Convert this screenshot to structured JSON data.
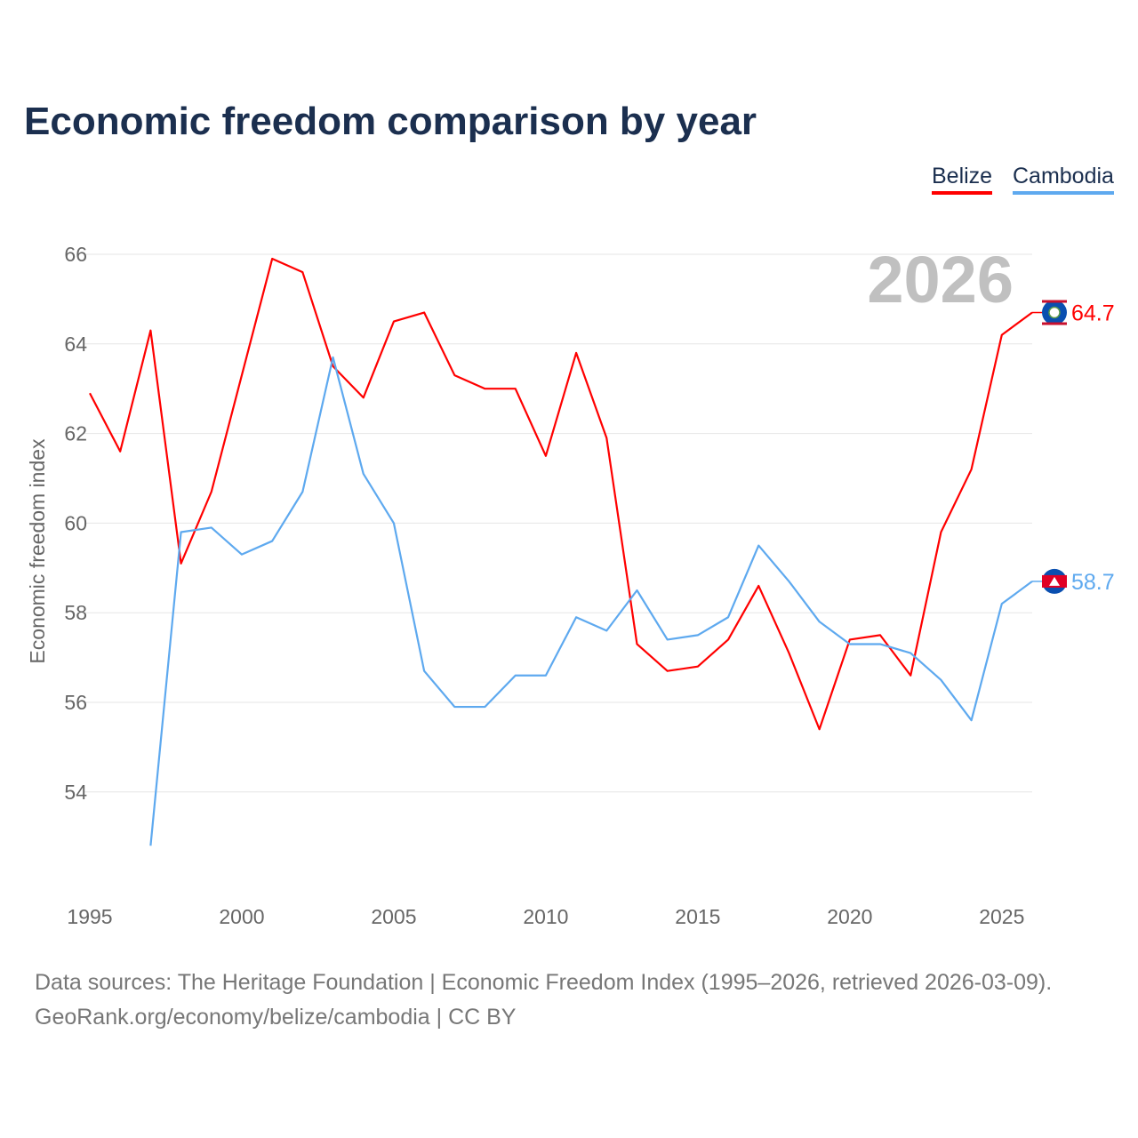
{
  "title": "Economic freedom comparison by year",
  "legend": [
    "Belize",
    "Cambodia"
  ],
  "footer": {
    "line1": "Data sources: The Heritage Foundation | Economic Freedom Index (1995–2026, retrieved 2026-03-09).",
    "line2": "GeoRank.org/economy/belize/cambodia | CC BY"
  },
  "year_watermark": "2026",
  "chart_data": {
    "type": "line",
    "title": "Economic freedom comparison by year",
    "xlabel": "",
    "ylabel": "Economic freedom index",
    "xlim": [
      1995,
      2026
    ],
    "ylim": [
      52.6,
      66
    ],
    "xticks": [
      1995,
      2000,
      2005,
      2010,
      2015,
      2020,
      2025
    ],
    "yticks": [
      54,
      56,
      58,
      60,
      62,
      64,
      66
    ],
    "grid": true,
    "legend_placement": "top-right",
    "series": [
      {
        "name": "Belize",
        "color": "#ff0000",
        "end_label": "64.7",
        "x": [
          1995,
          1996,
          1997,
          1998,
          1999,
          2000,
          2001,
          2002,
          2003,
          2004,
          2005,
          2006,
          2007,
          2008,
          2009,
          2010,
          2011,
          2012,
          2013,
          2014,
          2015,
          2016,
          2017,
          2018,
          2019,
          2020,
          2021,
          2022,
          2023,
          2024,
          2025,
          2026
        ],
        "values": [
          62.9,
          61.6,
          64.3,
          59.1,
          60.7,
          63.3,
          65.9,
          65.6,
          63.5,
          62.8,
          64.5,
          64.7,
          63.3,
          63.0,
          63.0,
          61.5,
          63.8,
          61.9,
          57.3,
          56.7,
          56.8,
          57.4,
          58.6,
          57.1,
          55.4,
          57.4,
          57.5,
          56.6,
          59.8,
          61.2,
          64.2,
          64.7
        ]
      },
      {
        "name": "Cambodia",
        "color": "#5ea9ef",
        "end_label": "58.7",
        "x": [
          1997,
          1998,
          1999,
          2000,
          2001,
          2002,
          2003,
          2004,
          2005,
          2006,
          2007,
          2008,
          2009,
          2010,
          2011,
          2012,
          2013,
          2014,
          2015,
          2016,
          2017,
          2018,
          2019,
          2020,
          2021,
          2022,
          2023,
          2024,
          2025,
          2026
        ],
        "values": [
          52.8,
          59.8,
          59.9,
          59.3,
          59.6,
          60.7,
          63.7,
          61.1,
          60.0,
          56.7,
          55.9,
          55.9,
          56.6,
          56.6,
          57.9,
          57.6,
          58.5,
          57.4,
          57.5,
          57.9,
          59.5,
          58.7,
          57.8,
          57.3,
          57.3,
          57.1,
          56.5,
          55.6,
          58.2,
          58.7
        ]
      }
    ]
  }
}
